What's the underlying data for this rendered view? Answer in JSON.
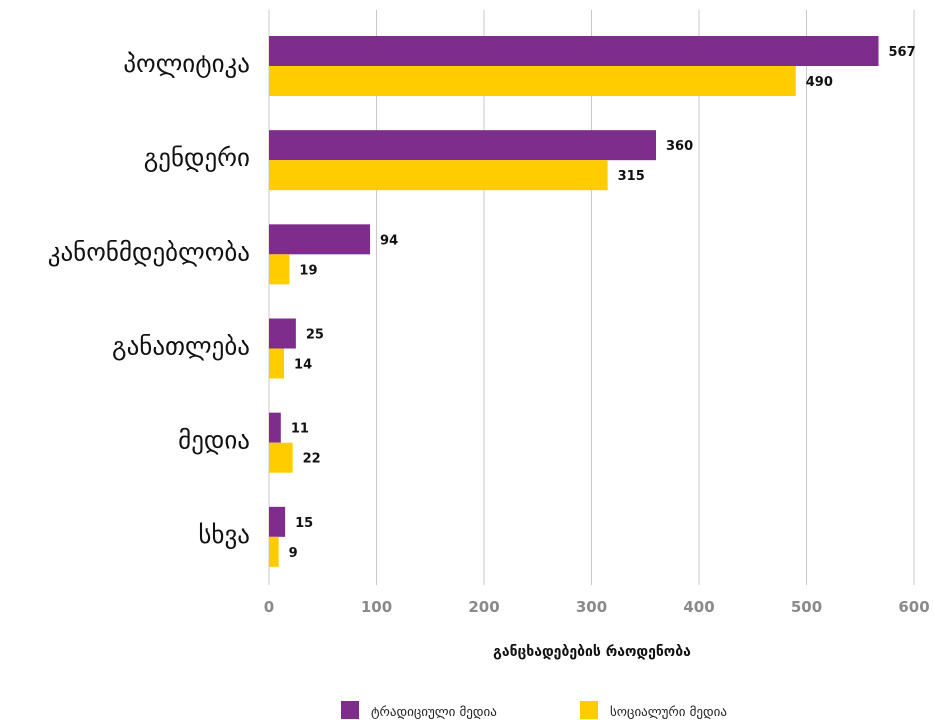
{
  "chart_data": {
    "type": "bar",
    "orientation": "horizontal",
    "categories": [
      "პოლიტიკა",
      "გენდერი",
      "კანონმდებლობა",
      "განათლება",
      "მედია",
      "სხვა"
    ],
    "series": [
      {
        "name": "ტრადიციული მედია",
        "color": "#7e2d8c",
        "values": [
          567,
          360,
          94,
          25,
          11,
          15
        ]
      },
      {
        "name": "სოციალური მედია",
        "color": "#ffcc00",
        "values": [
          490,
          315,
          19,
          14,
          22,
          9
        ]
      }
    ],
    "xlabel": "განცხადებების რაოდენობა",
    "ylabel": "",
    "xlim": [
      0,
      600
    ],
    "xticks": [
      "0",
      "100",
      "200",
      "300",
      "400",
      "500",
      "600"
    ],
    "grid": true,
    "legend_position": "bottom"
  }
}
